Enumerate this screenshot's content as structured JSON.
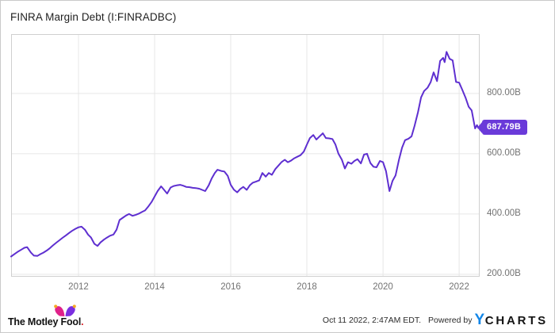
{
  "title": "FINRA Margin Debt (I:FINRADBC)",
  "colors": {
    "line": "#5e2fd0",
    "tag_background": "#6a3ad9",
    "gridline": "#e7e7e7",
    "plot_border": "#cfcfcf",
    "tick_text": "#737373",
    "ycharts_blue": "#1286e8",
    "mf_pink": "#e0218a",
    "mf_purple": "#7b2fe0",
    "mf_gold": "#f5a623"
  },
  "chart_data": {
    "type": "line",
    "title": "FINRA Margin Debt (I:FINRADBC)",
    "ylabel": "",
    "xlabel": "",
    "unit": "USD billions",
    "grid": true,
    "legend": "none",
    "x_range": [
      2010.23,
      2022.54
    ],
    "y_range": [
      192,
      997
    ],
    "x_ticks": [
      2012,
      2014,
      2016,
      2018,
      2020,
      2022
    ],
    "y_ticks": [
      {
        "value": 200,
        "label": "200.00B"
      },
      {
        "value": 400,
        "label": "400.00B"
      },
      {
        "value": 600,
        "label": "600.00B"
      },
      {
        "value": 800,
        "label": "800.00B"
      }
    ],
    "last_value_label": "687.79B",
    "series": [
      {
        "name": "FINRA Margin Debt",
        "color": "#5e2fd0",
        "points": [
          [
            2010.23,
            259
          ],
          [
            2010.33,
            268
          ],
          [
            2010.42,
            276
          ],
          [
            2010.5,
            282
          ],
          [
            2010.58,
            288
          ],
          [
            2010.65,
            290
          ],
          [
            2010.75,
            272
          ],
          [
            2010.83,
            262
          ],
          [
            2010.92,
            261
          ],
          [
            2011.0,
            267
          ],
          [
            2011.08,
            272
          ],
          [
            2011.17,
            279
          ],
          [
            2011.25,
            287
          ],
          [
            2011.33,
            296
          ],
          [
            2011.42,
            305
          ],
          [
            2011.5,
            313
          ],
          [
            2011.58,
            321
          ],
          [
            2011.67,
            329
          ],
          [
            2011.75,
            337
          ],
          [
            2011.83,
            344
          ],
          [
            2011.92,
            351
          ],
          [
            2012.0,
            356
          ],
          [
            2012.08,
            358
          ],
          [
            2012.17,
            348
          ],
          [
            2012.25,
            332
          ],
          [
            2012.33,
            322
          ],
          [
            2012.42,
            301
          ],
          [
            2012.5,
            294
          ],
          [
            2012.58,
            306
          ],
          [
            2012.67,
            315
          ],
          [
            2012.75,
            322
          ],
          [
            2012.83,
            328
          ],
          [
            2012.92,
            332
          ],
          [
            2013.0,
            348
          ],
          [
            2013.08,
            380
          ],
          [
            2013.17,
            388
          ],
          [
            2013.25,
            395
          ],
          [
            2013.33,
            400
          ],
          [
            2013.42,
            394
          ],
          [
            2013.5,
            397
          ],
          [
            2013.58,
            401
          ],
          [
            2013.67,
            407
          ],
          [
            2013.75,
            412
          ],
          [
            2013.83,
            424
          ],
          [
            2013.92,
            440
          ],
          [
            2014.0,
            458
          ],
          [
            2014.08,
            476
          ],
          [
            2014.17,
            492
          ],
          [
            2014.25,
            480
          ],
          [
            2014.33,
            468
          ],
          [
            2014.42,
            488
          ],
          [
            2014.5,
            493
          ],
          [
            2014.58,
            495
          ],
          [
            2014.67,
            497
          ],
          [
            2014.75,
            494
          ],
          [
            2014.83,
            490
          ],
          [
            2014.92,
            489
          ],
          [
            2015.0,
            487
          ],
          [
            2015.08,
            486
          ],
          [
            2015.17,
            484
          ],
          [
            2015.25,
            480
          ],
          [
            2015.33,
            476
          ],
          [
            2015.42,
            495
          ],
          [
            2015.5,
            518
          ],
          [
            2015.58,
            536
          ],
          [
            2015.65,
            547
          ],
          [
            2015.75,
            543
          ],
          [
            2015.83,
            541
          ],
          [
            2015.92,
            527
          ],
          [
            2016.0,
            497
          ],
          [
            2016.08,
            481
          ],
          [
            2016.17,
            472
          ],
          [
            2016.25,
            483
          ],
          [
            2016.33,
            490
          ],
          [
            2016.42,
            480
          ],
          [
            2016.5,
            495
          ],
          [
            2016.58,
            504
          ],
          [
            2016.67,
            508
          ],
          [
            2016.75,
            512
          ],
          [
            2016.83,
            536
          ],
          [
            2016.92,
            524
          ],
          [
            2017.0,
            536
          ],
          [
            2017.08,
            530
          ],
          [
            2017.17,
            549
          ],
          [
            2017.25,
            560
          ],
          [
            2017.33,
            572
          ],
          [
            2017.42,
            580
          ],
          [
            2017.5,
            572
          ],
          [
            2017.58,
            577
          ],
          [
            2017.67,
            585
          ],
          [
            2017.75,
            590
          ],
          [
            2017.83,
            595
          ],
          [
            2017.92,
            607
          ],
          [
            2018.0,
            630
          ],
          [
            2018.08,
            652
          ],
          [
            2018.17,
            662
          ],
          [
            2018.25,
            647
          ],
          [
            2018.33,
            657
          ],
          [
            2018.42,
            668
          ],
          [
            2018.5,
            652
          ],
          [
            2018.58,
            651
          ],
          [
            2018.67,
            649
          ],
          [
            2018.75,
            631
          ],
          [
            2018.83,
            600
          ],
          [
            2018.92,
            580
          ],
          [
            2019.0,
            551
          ],
          [
            2019.08,
            572
          ],
          [
            2019.17,
            567
          ],
          [
            2019.25,
            576
          ],
          [
            2019.33,
            582
          ],
          [
            2019.42,
            568
          ],
          [
            2019.5,
            597
          ],
          [
            2019.58,
            600
          ],
          [
            2019.67,
            569
          ],
          [
            2019.75,
            557
          ],
          [
            2019.83,
            555
          ],
          [
            2019.92,
            576
          ],
          [
            2020.0,
            572
          ],
          [
            2020.08,
            542
          ],
          [
            2020.17,
            476
          ],
          [
            2020.25,
            510
          ],
          [
            2020.33,
            528
          ],
          [
            2020.42,
            580
          ],
          [
            2020.5,
            620
          ],
          [
            2020.58,
            645
          ],
          [
            2020.67,
            650
          ],
          [
            2020.75,
            658
          ],
          [
            2020.83,
            693
          ],
          [
            2020.92,
            738
          ],
          [
            2021.0,
            787
          ],
          [
            2021.08,
            808
          ],
          [
            2021.17,
            819
          ],
          [
            2021.25,
            837
          ],
          [
            2021.33,
            870
          ],
          [
            2021.42,
            841
          ],
          [
            2021.5,
            908
          ],
          [
            2021.58,
            918
          ],
          [
            2021.62,
            904
          ],
          [
            2021.67,
            938
          ],
          [
            2021.75,
            915
          ],
          [
            2021.83,
            910
          ],
          [
            2021.92,
            838
          ],
          [
            2022.0,
            836
          ],
          [
            2022.08,
            813
          ],
          [
            2022.17,
            786
          ],
          [
            2022.25,
            756
          ],
          [
            2022.33,
            744
          ],
          [
            2022.42,
            684
          ],
          [
            2022.47,
            695
          ],
          [
            2022.5,
            686
          ],
          [
            2022.54,
            687.79
          ]
        ]
      }
    ]
  },
  "footer": {
    "brand": "The Motley Fool",
    "brand_suffix": ".",
    "timestamp": "Oct 11 2022, 2:47AM EDT.",
    "powered_by": "Powered by",
    "ycharts_y": "Y",
    "ycharts_rest": "CHARTS"
  }
}
